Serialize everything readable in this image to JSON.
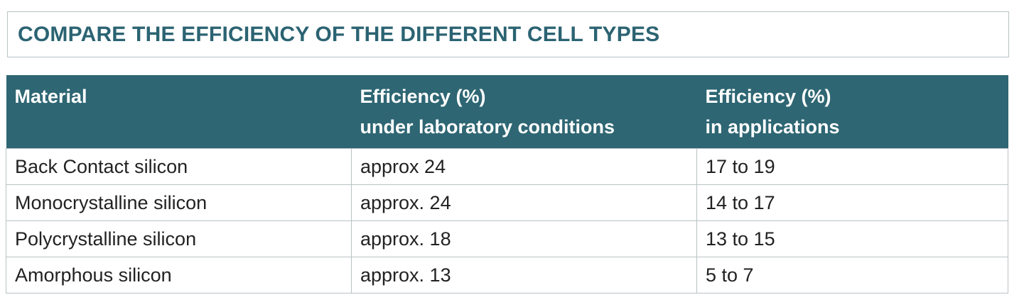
{
  "title": "COMPARE THE EFFICIENCY OF THE DIFFERENT CELL TYPES",
  "table": {
    "headers": [
      {
        "line1": "Material",
        "line2": ""
      },
      {
        "line1": "Efficiency (%)",
        "line2": "under laboratory conditions"
      },
      {
        "line1": "Efficiency (%)",
        "line2": "in applications"
      }
    ],
    "rows": [
      [
        "Back Contact silicon",
        "approx 24",
        "17 to 19"
      ],
      [
        "Monocrystalline silicon",
        "approx. 24",
        "14 to 17"
      ],
      [
        "Polycrystalline silicon",
        "approx. 18",
        "13 to 15"
      ],
      [
        "Amorphous silicon",
        "approx. 13",
        "5 to 7"
      ]
    ]
  },
  "colors": {
    "header_bg": "#2e6673",
    "title_text": "#2b6372",
    "border": "#b9c3c6"
  }
}
